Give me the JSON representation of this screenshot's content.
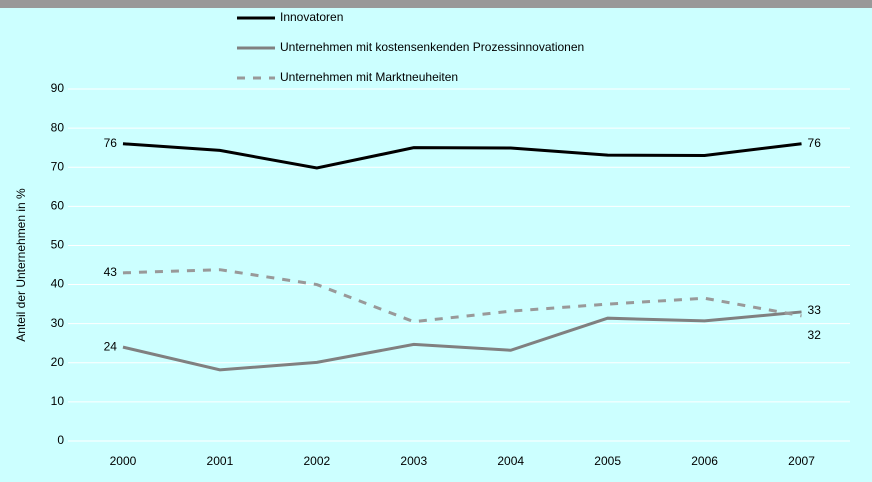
{
  "chart_data": {
    "type": "line",
    "y_axis_label": "Anteil der Unternehmen in %",
    "categories": [
      "2000",
      "2001",
      "2002",
      "2003",
      "2004",
      "2005",
      "2006",
      "2007"
    ],
    "series": [
      {
        "name": "Innovatoren",
        "color": "#000000",
        "dash": false,
        "values": [
          76,
          74.3,
          69.8,
          75,
          74.9,
          73.1,
          73,
          76
        ],
        "value_labels": [
          "76",
          null,
          null,
          null,
          null,
          null,
          null,
          "76"
        ]
      },
      {
        "name": "Unternehmen mit kostensenkenden Prozessinnovationen",
        "color": "#808080",
        "dash": false,
        "values": [
          24,
          18.2,
          20.1,
          24.7,
          23.2,
          31.4,
          30.7,
          33
        ],
        "value_labels": [
          "24",
          null,
          null,
          null,
          null,
          null,
          null,
          "33"
        ]
      },
      {
        "name": "Unternehmen mit Marktneuheiten",
        "color": "#999999",
        "dash": true,
        "values": [
          43,
          43.8,
          40,
          30.5,
          33.2,
          35,
          36.5,
          32
        ],
        "value_labels": [
          "43",
          null,
          null,
          null,
          null,
          null,
          null,
          "32"
        ]
      }
    ],
    "ylim": [
      0,
      90
    ],
    "yticks": [
      0,
      10,
      20,
      30,
      40,
      50,
      60,
      70,
      80,
      90
    ],
    "grid": true
  }
}
